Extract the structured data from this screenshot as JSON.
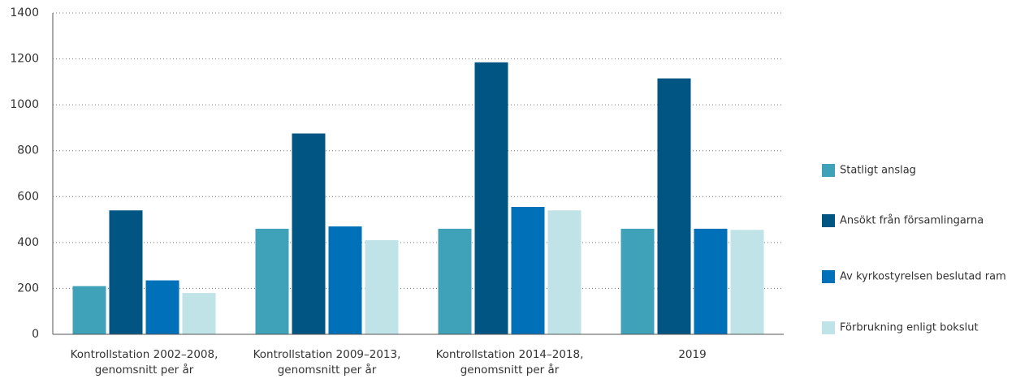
{
  "chart_data": {
    "type": "bar",
    "categories": [
      "Kontrollstation 2002–2008, genomsnitt per år",
      "Kontrollstation 2009–2013, genomsnitt per år",
      "Kontrollstation 2014–2018, genomsnitt per år",
      "2019"
    ],
    "series": [
      {
        "name": "Statligt anslag",
        "color": "#3fa2b8",
        "values": [
          210,
          460,
          460,
          460
        ]
      },
      {
        "name": "Ansökt från församlingarna",
        "color": "#005582",
        "values": [
          540,
          875,
          1185,
          1115
        ]
      },
      {
        "name": "Av kyrkostyrelsen beslutad ram",
        "color": "#0070b8",
        "values": [
          235,
          470,
          555,
          460
        ]
      },
      {
        "name": "Förbrukning enligt bokslut",
        "color": "#c0e3e8",
        "values": [
          180,
          410,
          540,
          455
        ]
      }
    ],
    "ylim": [
      0,
      1400
    ],
    "yticks": [
      0,
      200,
      400,
      600,
      800,
      1000,
      1200,
      1400
    ],
    "grid": true,
    "legend": "right"
  }
}
